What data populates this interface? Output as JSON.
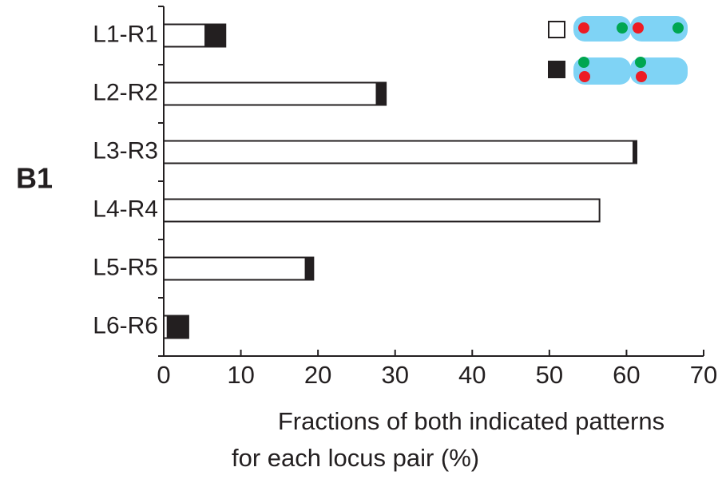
{
  "chart_data": {
    "type": "stacked-hbar",
    "panel_label": "B1",
    "categories": [
      "L1-R1",
      "L2-R2",
      "L3-R3",
      "L4-R4",
      "L5-R5",
      "L6-R6"
    ],
    "series": [
      {
        "color": "#ffffff",
        "values": [
          5.4,
          27.6,
          60.9,
          56.5,
          18.4,
          0.5
        ]
      },
      {
        "color": "#231f20",
        "values": [
          2.6,
          1.2,
          0.4,
          0,
          1.0,
          2.7
        ]
      }
    ],
    "xlim": [
      0,
      70
    ],
    "xticks": [
      0,
      10,
      20,
      30,
      40,
      50,
      60,
      70
    ],
    "xlabel": [
      "Fractions of both indicated patterns",
      "for each locus pair (%)"
    ]
  }
}
